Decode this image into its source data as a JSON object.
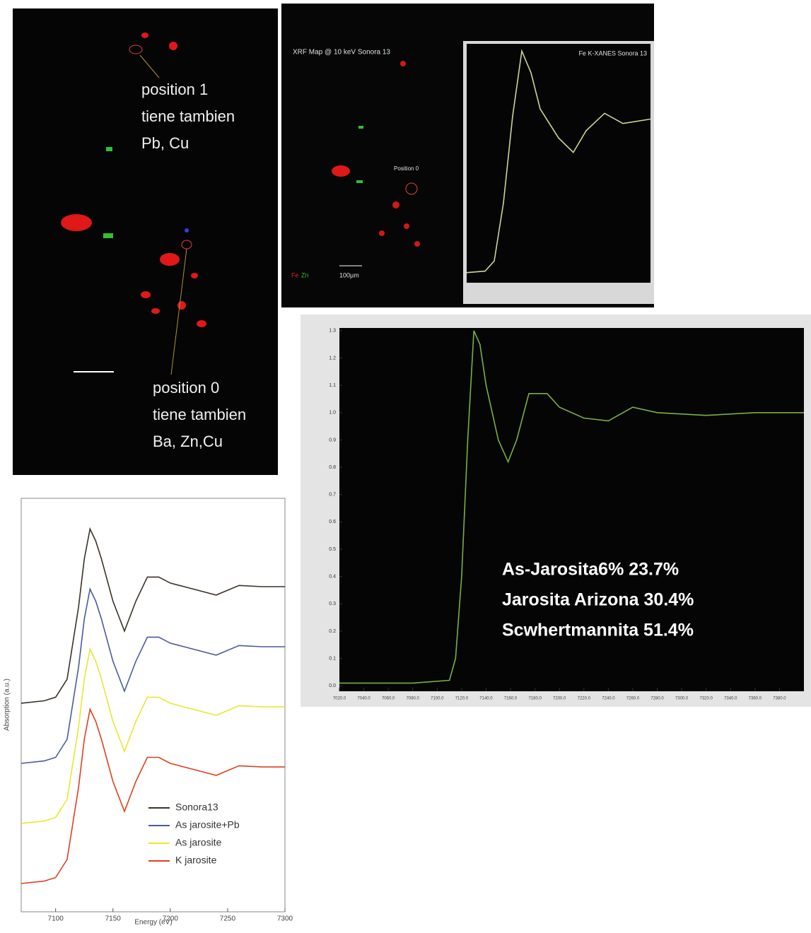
{
  "maps": {
    "left": {
      "labels": [
        "position 1",
        "tiene tambien",
        "Pb, Cu",
        "position 0",
        "tiene tambien",
        "Ba, Zn,Cu"
      ]
    },
    "right": {
      "title": "XRF Map @ 10 keV Sonora 13",
      "marker": "Position 0",
      "scale": "100µm",
      "channels": [
        "Fe",
        "Zn"
      ]
    }
  },
  "chart_data": [
    {
      "type": "line",
      "title": "Fe K-XANES Sonora 13",
      "x": [
        7100,
        7110,
        7115,
        7120,
        7125,
        7130,
        7135,
        7140,
        7150,
        7158,
        7165,
        7175,
        7185,
        7200
      ],
      "values": [
        0.02,
        0.03,
        0.1,
        0.5,
        1.1,
        1.55,
        1.4,
        1.15,
        0.95,
        0.85,
        1.0,
        1.12,
        1.05,
        1.08
      ],
      "color": "#c8d890",
      "xlim": [
        7100,
        7200
      ],
      "ylim": [
        -0.05,
        1.6
      ]
    },
    {
      "type": "line",
      "x": [
        7020,
        7080,
        7110,
        7115,
        7120,
        7125,
        7130,
        7135,
        7140,
        7150,
        7158,
        7165,
        7175,
        7190,
        7200,
        7220,
        7240,
        7260,
        7280,
        7320,
        7360,
        7400
      ],
      "values": [
        0.01,
        0.01,
        0.02,
        0.1,
        0.4,
        0.9,
        1.3,
        1.25,
        1.1,
        0.9,
        0.82,
        0.9,
        1.07,
        1.07,
        1.02,
        0.98,
        0.97,
        1.02,
        1.0,
        0.99,
        1.0,
        1.0
      ],
      "color": "#7ab040",
      "xlim": [
        7020,
        7400
      ],
      "ylim": [
        -0.02,
        1.31
      ],
      "yticks": [
        {
          "value": 0,
          "label": "0.0"
        },
        0.1,
        0.2,
        0.3,
        0.4,
        0.5,
        0.6,
        0.7,
        0.8,
        0.9,
        {
          "value": 1,
          "label": "1.0"
        },
        1.1,
        1.2,
        1.3
      ],
      "xticks": [
        {
          "value": 7020,
          "label": "7020.0"
        },
        {
          "value": 7040,
          "label": "7040.0"
        },
        {
          "value": 7060,
          "label": "7060.0"
        },
        {
          "value": 7080,
          "label": "7080.0"
        },
        {
          "value": 7100,
          "label": "7100.0"
        },
        {
          "value": 7120,
          "label": "7120.0"
        },
        {
          "value": 7140,
          "label": "7140.0"
        },
        {
          "value": 7160,
          "label": "7160.0"
        },
        {
          "value": 7180,
          "label": "7180.0"
        },
        {
          "value": 7200,
          "label": "7200.0"
        },
        {
          "value": 7220,
          "label": "7220.0"
        },
        {
          "value": 7240,
          "label": "7240.0"
        },
        {
          "value": 7260,
          "label": "7260.0"
        },
        {
          "value": 7280,
          "label": "7280.0"
        },
        {
          "value": 7300,
          "label": "7300.0"
        },
        {
          "value": 7320,
          "label": "7320.0"
        },
        {
          "value": 7340,
          "label": "7340.0"
        },
        {
          "value": 7360,
          "label": "7360.0"
        },
        {
          "value": 7380,
          "label": "7380.0"
        }
      ],
      "annotations": [
        "As-Jarosita6% 23.7%",
        "Jarosita Arizona 30.4%",
        "Scwhertmannita 51.4%"
      ]
    },
    {
      "type": "line",
      "x_label": "Energy (eV)",
      "y_label": "Absorption (a.u.)",
      "x": [
        7070,
        7090,
        7100,
        7110,
        7120,
        7125,
        7130,
        7135,
        7140,
        7150,
        7160,
        7170,
        7180,
        7190,
        7200,
        7220,
        7240,
        7260,
        7280,
        7300
      ],
      "series": [
        {
          "name": "Sonora13",
          "color": "#3a3228",
          "values": [
            3.47,
            3.51,
            3.57,
            3.87,
            5.07,
            5.87,
            6.37,
            6.17,
            5.87,
            5.17,
            4.67,
            5.17,
            5.57,
            5.57,
            5.47,
            5.37,
            5.27,
            5.43,
            5.41,
            5.41
          ]
        },
        {
          "name": "As jarosite+Pb",
          "color": "#4a5aa0",
          "values": [
            2.47,
            2.51,
            2.57,
            2.87,
            4.07,
            4.87,
            5.37,
            5.17,
            4.87,
            4.17,
            3.67,
            4.17,
            4.57,
            4.57,
            4.47,
            4.37,
            4.27,
            4.43,
            4.41,
            4.41
          ]
        },
        {
          "name": "As jarosite",
          "color": "#e8e830",
          "values": [
            1.47,
            1.51,
            1.57,
            1.87,
            3.07,
            3.87,
            4.37,
            4.17,
            3.87,
            3.17,
            2.67,
            3.17,
            3.57,
            3.57,
            3.47,
            3.37,
            3.27,
            3.43,
            3.41,
            3.41
          ]
        },
        {
          "name": "K jarosite",
          "color": "#e04020",
          "values": [
            0.47,
            0.51,
            0.57,
            0.87,
            2.07,
            2.87,
            3.37,
            3.17,
            2.87,
            2.17,
            1.67,
            2.17,
            2.57,
            2.57,
            2.47,
            2.37,
            2.27,
            2.43,
            2.41,
            2.41
          ]
        }
      ],
      "xlim": [
        7070,
        7300
      ],
      "ylim": [
        0,
        6.88
      ],
      "xticks": [
        7100,
        7150,
        7200,
        7250,
        7300
      ]
    }
  ]
}
